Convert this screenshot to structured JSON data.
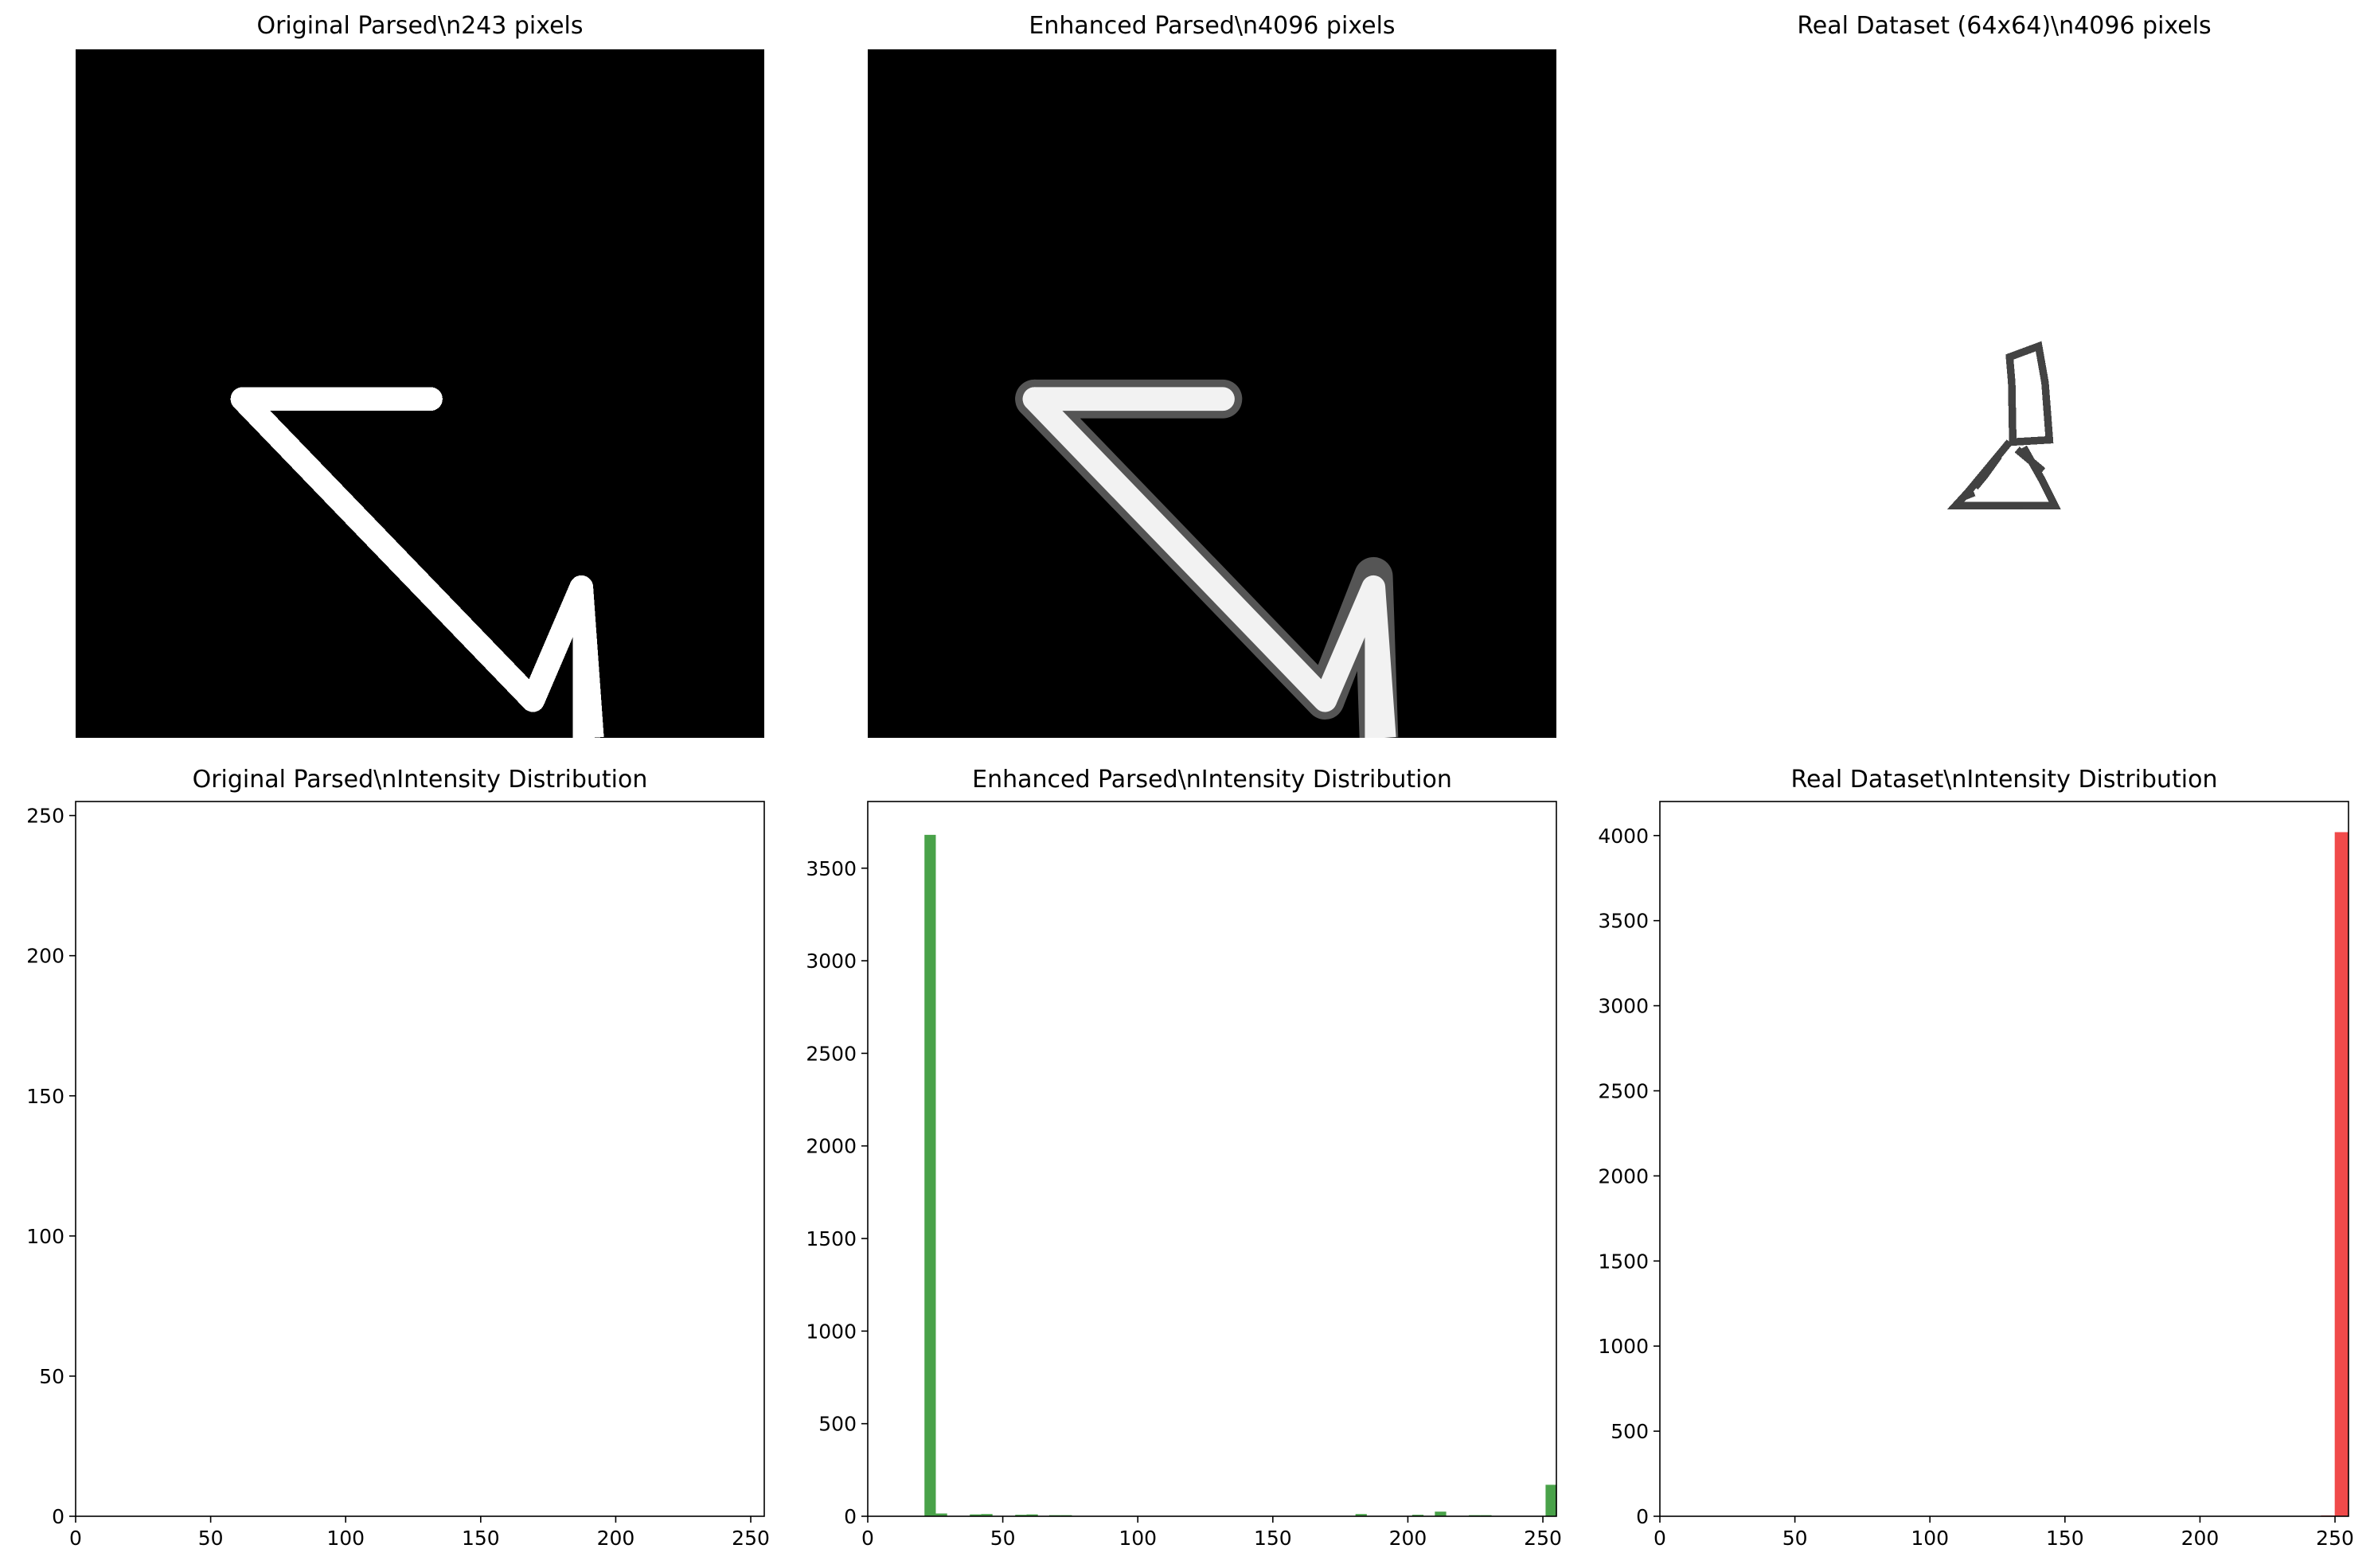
{
  "images": [
    {
      "title": "Original Parsed\\n243 pixels",
      "background": "#000000",
      "foreground": "#ffffff",
      "grid_size": 64,
      "strokes": [
        {
          "shape": "top-bar",
          "value": 255
        },
        {
          "shape": "diagonal",
          "value": 255
        },
        {
          "shape": "right-leg",
          "value": 255
        }
      ]
    },
    {
      "title": "Enhanced Parsed\\n4096 pixels",
      "background": "#000000",
      "foreground": "#f2f2f2",
      "grid_size": 64,
      "strokes": [
        {
          "shape": "top-bar",
          "value": 240
        },
        {
          "shape": "diagonal",
          "value": 240
        },
        {
          "shape": "right-leg",
          "value": 240
        }
      ]
    },
    {
      "title": "Real Dataset (64x64)\\n4096 pixels",
      "background": "#ffffff",
      "foreground": "#222222",
      "grid_size": 64,
      "strokes": [
        {
          "shape": "sketch-figure",
          "value": 40
        }
      ]
    }
  ],
  "chart_data": [
    {
      "type": "bar",
      "title": "Original Parsed\\nIntensity Distribution",
      "xlim": [
        0,
        255
      ],
      "ylim": [
        0,
        255
      ],
      "xticks": [
        0,
        50,
        100,
        150,
        200,
        250
      ],
      "yticks": [
        0,
        50,
        100,
        150,
        200,
        250
      ],
      "color": "#2e7d32",
      "bins": []
    },
    {
      "type": "bar",
      "title": "Enhanced Parsed\\nIntensity Distribution",
      "xlim": [
        0,
        255
      ],
      "ylim": [
        0,
        3860
      ],
      "xticks": [
        0,
        50,
        100,
        150,
        200,
        250
      ],
      "yticks": [
        0,
        500,
        1000,
        1500,
        2000,
        2500,
        3000,
        3500
      ],
      "color": "#3a9a3a",
      "bin_width": 4.2,
      "bins": [
        {
          "x": 21.0,
          "count": 3680
        },
        {
          "x": 25.2,
          "count": 15
        },
        {
          "x": 37.8,
          "count": 10
        },
        {
          "x": 42.0,
          "count": 12
        },
        {
          "x": 54.6,
          "count": 8
        },
        {
          "x": 58.8,
          "count": 10
        },
        {
          "x": 67.2,
          "count": 6
        },
        {
          "x": 71.4,
          "count": 6
        },
        {
          "x": 180.6,
          "count": 12
        },
        {
          "x": 201.6,
          "count": 8
        },
        {
          "x": 210.0,
          "count": 25
        },
        {
          "x": 222.6,
          "count": 6
        },
        {
          "x": 226.8,
          "count": 6
        },
        {
          "x": 251.0,
          "count": 170
        }
      ]
    },
    {
      "type": "bar",
      "title": "Real Dataset\\nIntensity Distribution",
      "xlim": [
        0,
        255
      ],
      "ylim": [
        0,
        4200
      ],
      "xticks": [
        0,
        50,
        100,
        150,
        200,
        250
      ],
      "yticks": [
        0,
        500,
        1000,
        1500,
        2000,
        2500,
        3000,
        3500,
        4000
      ],
      "color": "#ef3b3b",
      "bin_width": 5.1,
      "bins": [
        {
          "x": 244.8,
          "count": 5
        },
        {
          "x": 249.9,
          "count": 4020
        }
      ]
    }
  ]
}
